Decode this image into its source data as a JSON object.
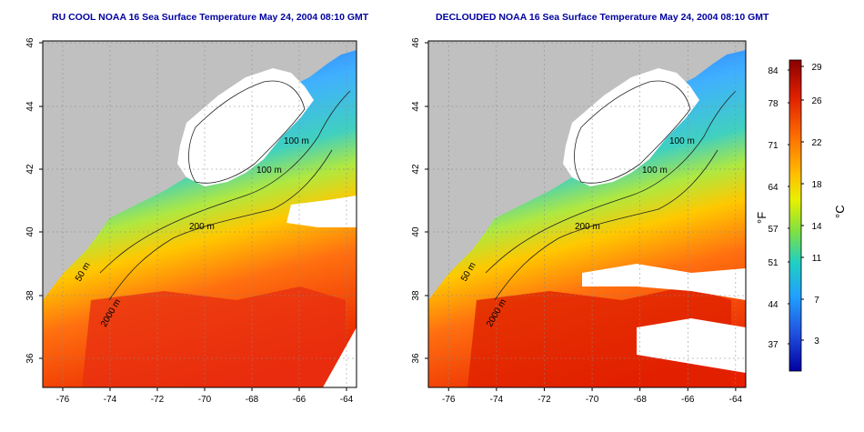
{
  "titles": {
    "left": "RU COOL NOAA 16 Sea Surface Temperature May 24, 2004 08:10 GMT",
    "right": "DECLOUDED NOAA 16 Sea Surface Temperature May 24, 2004 08:10 GMT"
  },
  "axes": {
    "lat_ticks": [
      "46",
      "44",
      "42",
      "40",
      "38",
      "36"
    ],
    "lon_ticks": [
      "-76",
      "-74",
      "-72",
      "-70",
      "-68",
      "-66",
      "-64"
    ]
  },
  "contours": {
    "label_100m": "100 m",
    "label_200m": "200 m",
    "label_50m": "50 m",
    "label_2000m": "2000 m"
  },
  "colorbar": {
    "f_label": "°F",
    "c_label": "°C",
    "f_ticks": [
      "84",
      "78",
      "71",
      "64",
      "57",
      "51",
      "44",
      "37"
    ],
    "c_ticks": [
      "29",
      "26",
      "22",
      "18",
      "14",
      "11",
      "7",
      "3"
    ],
    "colors": [
      "#8b0000",
      "#e02000",
      "#ff7000",
      "#ffc000",
      "#e8f000",
      "#80e040",
      "#20d0c0",
      "#20a0ff",
      "#2050e0",
      "#0000a0"
    ]
  },
  "colors": {
    "land": "#c0c0c0",
    "title": "#0000a0"
  }
}
